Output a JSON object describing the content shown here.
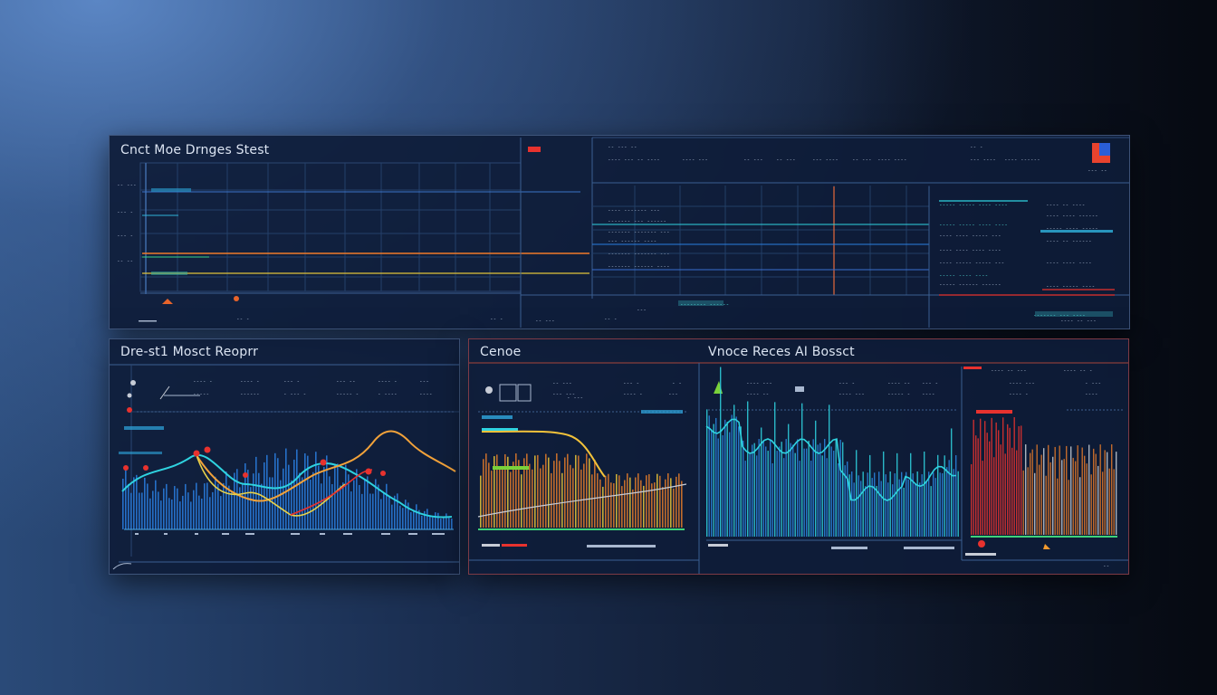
{
  "colors": {
    "background": "#1b2f52",
    "panel": "#0e1c38",
    "grid": "#2c4a78",
    "cyan": "#2fd3e0",
    "blue": "#2a7fe0",
    "orange": "#f29a2e",
    "yellow": "#e8d24a",
    "red": "#e8322e",
    "green": "#3ed27a"
  },
  "top_panel": {
    "title": "Cnct Moe Drnges Stest"
  },
  "bottom_left_panel": {
    "title": "Dre-st1 Mosct Reoprr"
  },
  "bottom_right_panel": {
    "left_title": "Cenoe",
    "right_title": "Vnoce Reces AI Bossct"
  },
  "icons": {
    "top_right_logo": "app-logo-icon",
    "marker": "alert-dot-icon"
  }
}
